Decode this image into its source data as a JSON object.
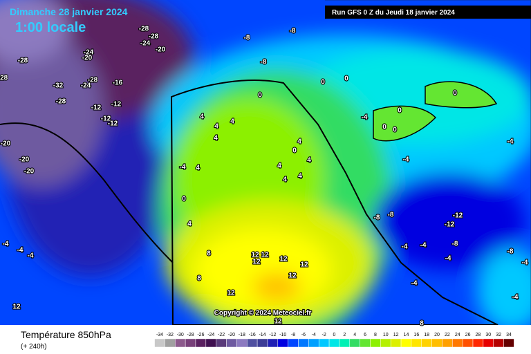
{
  "header": {
    "date": "Dimanche 28 janvier 2024",
    "time": "1:00 locale",
    "run": "Run GFS 0 Z du Jeudi 18 janvier 2024"
  },
  "footer": {
    "title": "Température 850hPa",
    "lead": "(+ 240h)",
    "copyright": "Copyright © 2024 Meteociel.fr"
  },
  "legend": {
    "values": [
      -34,
      -32,
      -30,
      -28,
      -26,
      -24,
      -22,
      -20,
      -18,
      -16,
      -14,
      -12,
      -10,
      -8,
      -6,
      -4,
      -2,
      0,
      2,
      4,
      6,
      8,
      10,
      12,
      14,
      16,
      18,
      20,
      22,
      24,
      26,
      28,
      30,
      32,
      34
    ],
    "colors": [
      "#c8c8c8",
      "#a0a0a0",
      "#8c5a8c",
      "#78407a",
      "#5a2060",
      "#401050",
      "#5a3a7a",
      "#6e5aa0",
      "#8c7ac0",
      "#5050a0",
      "#3c3c96",
      "#2020b4",
      "#0000e0",
      "#0046ff",
      "#0078ff",
      "#00a0ff",
      "#00c8ff",
      "#00e6e6",
      "#00f0b4",
      "#32dc64",
      "#64e632",
      "#8cf000",
      "#b4f000",
      "#dcf000",
      "#ffff00",
      "#ffe600",
      "#ffd200",
      "#ffbe00",
      "#ffa000",
      "#ff7800",
      "#ff5000",
      "#ff2800",
      "#e60000",
      "#b40000",
      "#640000"
    ]
  },
  "map": {
    "isotherm_labels": [
      -8,
      -8,
      -8,
      -28,
      -28,
      -24,
      -20,
      -24,
      -20,
      -28,
      -28,
      -32,
      -24,
      -28,
      -16,
      -28,
      -12,
      -12,
      -12,
      -12,
      -20,
      -20,
      -20,
      0,
      0,
      0,
      0,
      0,
      0,
      0,
      -4,
      4,
      4,
      4,
      4,
      -4,
      4,
      0,
      4,
      -4,
      -4,
      -8,
      -8,
      -12,
      -12,
      -8,
      -4,
      -4,
      -8,
      -4,
      -4,
      -4,
      -4,
      -4,
      -4,
      -4,
      8,
      8,
      12,
      12,
      12,
      12,
      12,
      12,
      12,
      12,
      12,
      8,
      4,
      4,
      0,
      4,
      4,
      4
    ]
  }
}
